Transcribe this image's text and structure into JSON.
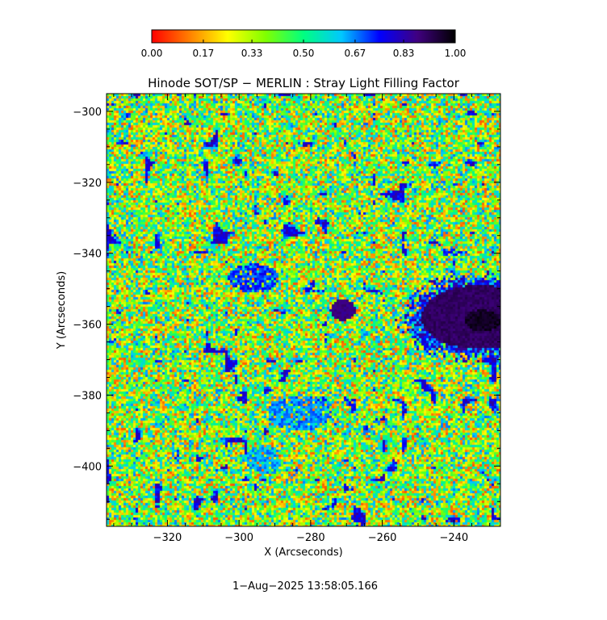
{
  "chart_data": {
    "type": "heatmap",
    "title": "Hinode SOT/SP − MERLIN : Stray Light Filling Factor",
    "xlabel": "X (Arcseconds)",
    "ylabel": "Y (Arcseconds)",
    "xlim": [
      -337,
      -227
    ],
    "ylim": [
      -417,
      -295
    ],
    "x_ticks": [
      -320,
      -300,
      -280,
      -260,
      -240
    ],
    "y_ticks": [
      -300,
      -320,
      -340,
      -360,
      -380,
      -400
    ],
    "x_tick_labels": [
      "−320",
      "−300",
      "−280",
      "−260",
      "−240"
    ],
    "y_tick_labels": [
      "−300",
      "−320",
      "−340",
      "−360",
      "−380",
      "−400"
    ],
    "colorbar": {
      "range": [
        0.0,
        1.0
      ],
      "ticks": [
        0.0,
        0.17,
        0.33,
        0.5,
        0.67,
        0.83,
        1.0
      ],
      "tick_labels": [
        "0.00",
        "0.17",
        "0.33",
        "0.50",
        "0.67",
        "0.83",
        "1.00"
      ],
      "colors": [
        "#ff0000",
        "#ff8000",
        "#ffff00",
        "#80ff00",
        "#00ff80",
        "#00c8ff",
        "#0000ff",
        "#400080",
        "#000000"
      ]
    },
    "features": [
      {
        "kind": "sunspot-penumbra",
        "x": -233,
        "y": -358,
        "rx": 16,
        "ry": 9,
        "value": 0.93
      },
      {
        "kind": "sunspot-umbra",
        "x": -232,
        "y": -359,
        "rx": 5,
        "ry": 3,
        "value": 0.99
      },
      {
        "kind": "pore",
        "x": -271,
        "y": -356,
        "rx": 3.5,
        "ry": 3,
        "value": 0.9
      },
      {
        "kind": "plage",
        "x": -296,
        "y": -347,
        "rx": 7,
        "ry": 4,
        "value": 0.78
      },
      {
        "kind": "plage",
        "x": -283,
        "y": -385,
        "rx": 9,
        "ry": 5,
        "value": 0.72
      },
      {
        "kind": "plage",
        "x": -293,
        "y": -398,
        "rx": 5,
        "ry": 4,
        "value": 0.7
      }
    ],
    "background_value": 0.38,
    "background_noise": 0.3,
    "date": "1−Aug−2025 13:58:05.166"
  }
}
